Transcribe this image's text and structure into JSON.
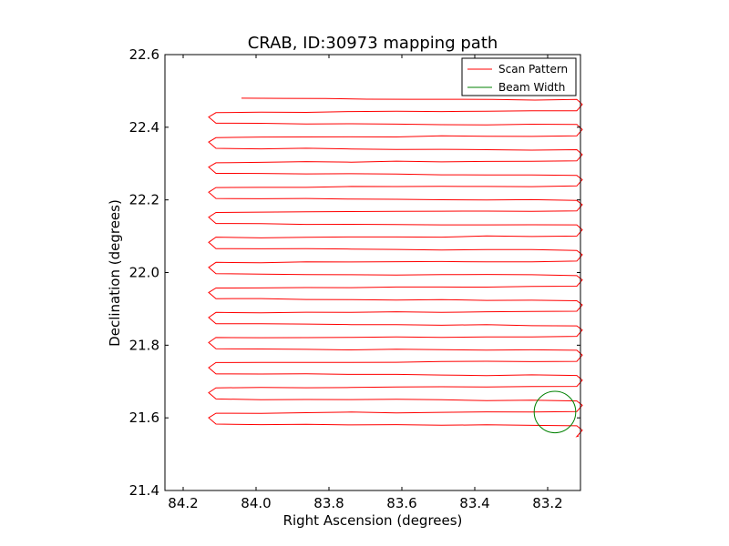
{
  "chart_data": {
    "type": "line",
    "title": "CRAB, ID:30973 mapping path",
    "xlabel": "Right Ascension (degrees)",
    "ylabel": "Declination (degrees)",
    "xlim": [
      84.25,
      83.11
    ],
    "ylim": [
      21.4,
      22.6
    ],
    "xticks": [
      "84.2",
      "84.0",
      "83.8",
      "83.6",
      "83.4",
      "83.2"
    ],
    "xtick_values": [
      84.2,
      84.0,
      83.8,
      83.6,
      83.4,
      83.2
    ],
    "yticks": [
      "21.4",
      "21.6",
      "21.8",
      "22.0",
      "22.2",
      "22.4",
      "22.6"
    ],
    "ytick_values": [
      21.4,
      21.6,
      21.8,
      22.0,
      22.2,
      22.4,
      22.6
    ],
    "grid": false,
    "legend_position": "top-right",
    "series": [
      {
        "name": "Scan Pattern",
        "color": "#ff0000",
        "type": "scan-raster",
        "x_start": 84.04,
        "y_start": 22.48,
        "x_left": 84.11,
        "x_right": 83.12,
        "dec_step": 0.0345,
        "num_rows": 27,
        "end": [
          83.115,
          21.55
        ]
      },
      {
        "name": "Beam Width",
        "color": "#008000",
        "type": "circle",
        "center": [
          83.18,
          21.616
        ],
        "radius_dec": 0.057
      }
    ]
  }
}
